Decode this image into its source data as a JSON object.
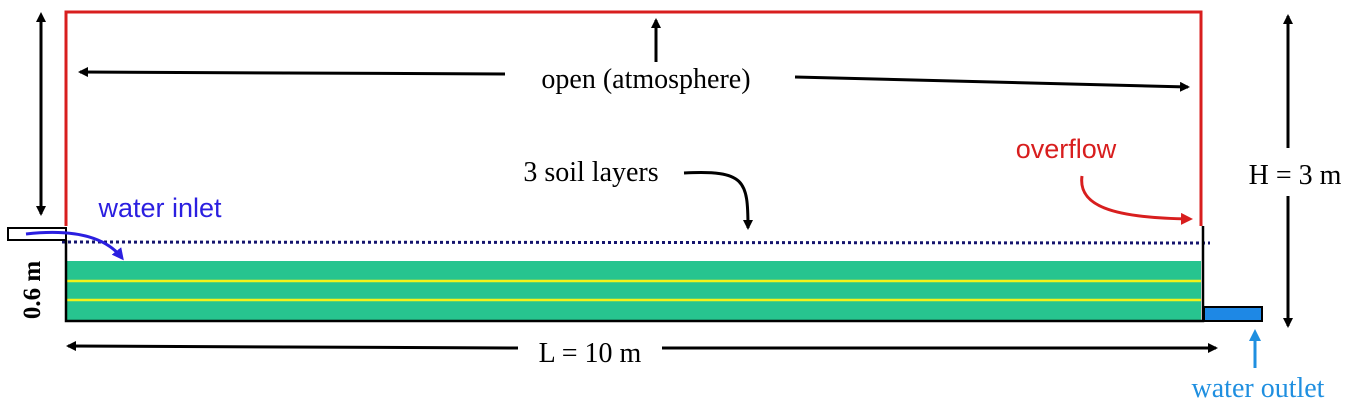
{
  "labels": {
    "open": "open (atmosphere)",
    "overflow": "overflow",
    "soil_layers": "3 soil layers",
    "water_inlet": "water inlet",
    "height": "H = 3 m",
    "depth": "0.6 m",
    "length": "L = 10 m",
    "water_outlet": "water outlet"
  },
  "colors": {
    "boundary": "#d81e1e",
    "soil": "#27c48f",
    "layer_line": "#f2f21a",
    "water_level": "#14146e",
    "inlet": "#2b1fe0",
    "outlet": "#1f8fe0",
    "outlet_box": "#1e88e5",
    "ink": "#000000"
  }
}
